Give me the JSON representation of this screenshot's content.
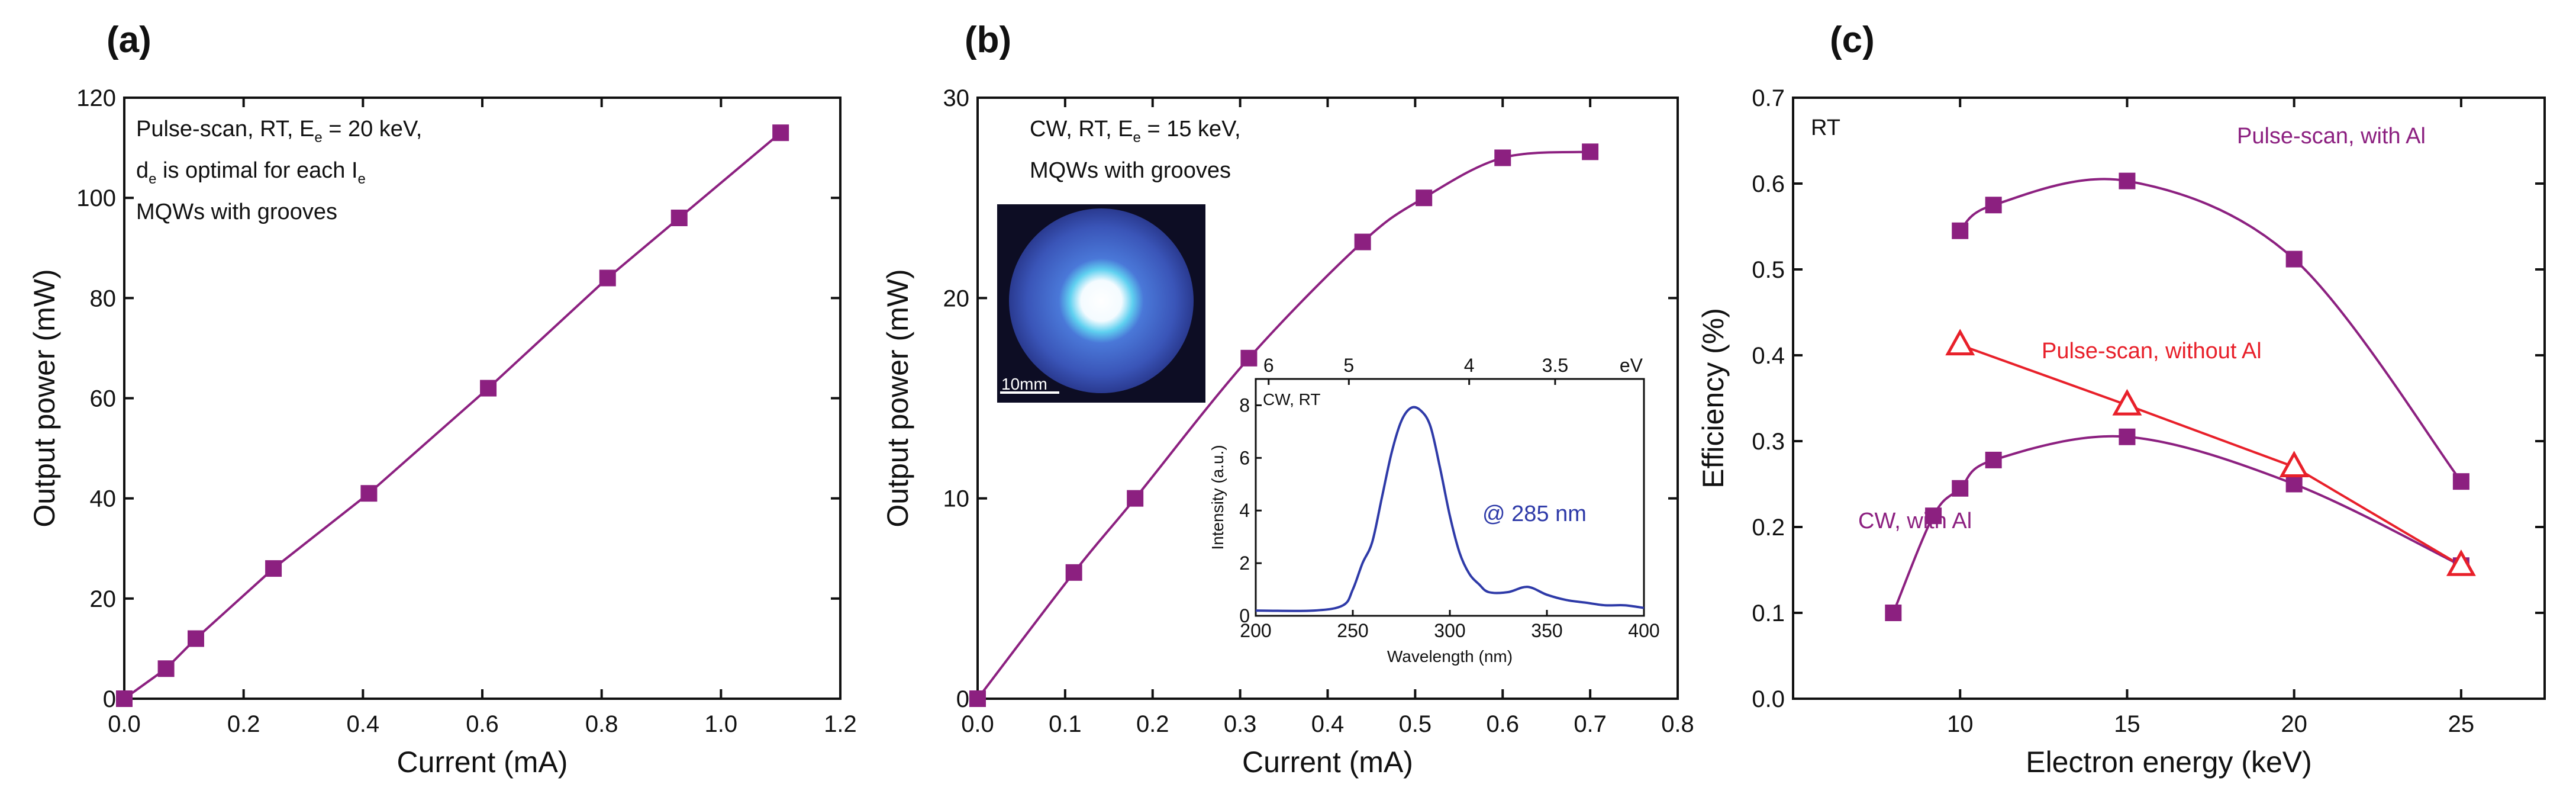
{
  "colors": {
    "purple": "#8c2080",
    "red": "#e8202a",
    "blue": "#2e3aa8",
    "axis": "#111111"
  },
  "chart_data": [
    {
      "id": "a",
      "panel_label": "(a)",
      "type": "line",
      "xlabel": "Current (mA)",
      "ylabel": "Output power (mW)",
      "xlim": [
        0,
        1.2
      ],
      "ylim": [
        0,
        120
      ],
      "xticks": [
        0,
        0.2,
        0.4,
        0.6,
        0.8,
        1.0,
        1.2
      ],
      "xtick_labels": [
        "0.0",
        "0.2",
        "0.4",
        "0.6",
        "0.8",
        "1.0",
        "1.2"
      ],
      "yticks": [
        0,
        20,
        40,
        60,
        80,
        100,
        120
      ],
      "ytick_labels": [
        "0",
        "20",
        "40",
        "60",
        "80",
        "100",
        "120"
      ],
      "annotation": {
        "line1": "Pulse-scan, RT, E",
        "line1_sub": "e",
        "line1_end": " = 20 keV,",
        "line2": "d",
        "line2_sub": "e",
        "line2_mid": " is optimal for each I",
        "line2_sub2": "e",
        "line3": "MQWs with grooves"
      },
      "series": [
        {
          "name": "Pulse-scan",
          "color": "#8c2080",
          "marker": "square",
          "x": [
            0.0,
            0.07,
            0.12,
            0.25,
            0.41,
            0.61,
            0.81,
            0.93,
            1.1
          ],
          "y": [
            0,
            6,
            12,
            26,
            41,
            62,
            84,
            96,
            113
          ]
        }
      ]
    },
    {
      "id": "b",
      "panel_label": "(b)",
      "type": "line",
      "xlabel": "Current (mA)",
      "ylabel": "Output power (mW)",
      "xlim": [
        0,
        0.8
      ],
      "ylim": [
        0,
        30
      ],
      "xticks": [
        0,
        0.1,
        0.2,
        0.3,
        0.4,
        0.5,
        0.6,
        0.7,
        0.8
      ],
      "xtick_labels": [
        "0.0",
        "0.1",
        "0.2",
        "0.3",
        "0.4",
        "0.5",
        "0.6",
        "0.7",
        "0.8"
      ],
      "yticks": [
        0,
        10,
        20,
        30
      ],
      "ytick_labels": [
        "0",
        "10",
        "20",
        "30"
      ],
      "annotation": {
        "line1": "CW, RT, E",
        "line1_sub": "e",
        "line1_end": " = 15 keV,",
        "line2": "MQWs with grooves"
      },
      "series": [
        {
          "name": "CW",
          "color": "#8c2080",
          "marker": "square",
          "x": [
            0.0,
            0.11,
            0.18,
            0.31,
            0.44,
            0.51,
            0.6,
            0.7
          ],
          "y": [
            0,
            6.3,
            10,
            17,
            22.8,
            25,
            27,
            27.3
          ]
        }
      ],
      "photo_inset": {
        "scale_label": "10mm"
      },
      "spectrum_inset": {
        "type": "line",
        "label": "CW, RT",
        "peak_label": "@ 285 nm",
        "xlabel": "Wavelength (nm)",
        "ylabel": "Intensity (a.u.)",
        "top_axis_unit": "eV",
        "xlim": [
          200,
          400
        ],
        "ylim": [
          0,
          9
        ],
        "xticks": [
          200,
          250,
          300,
          350,
          400
        ],
        "xtick_labels": [
          "200",
          "250",
          "300",
          "350",
          "400"
        ],
        "yticks": [
          0,
          2,
          4,
          6,
          8
        ],
        "ytick_labels": [
          "0",
          "2",
          "4",
          "6",
          "8"
        ],
        "top_ticks_ev": [
          6,
          5,
          4,
          3.5
        ],
        "top_tick_labels": [
          "6",
          "5",
          "4",
          "3.5"
        ],
        "curve": {
          "x": [
            200,
            230,
            245,
            250,
            255,
            260,
            265,
            270,
            275,
            280,
            285,
            290,
            295,
            300,
            305,
            310,
            315,
            320,
            330,
            340,
            350,
            360,
            370,
            380,
            390,
            400
          ],
          "y": [
            0.2,
            0.2,
            0.4,
            1.0,
            2.0,
            2.8,
            4.5,
            6.2,
            7.4,
            7.9,
            7.8,
            7.2,
            5.6,
            3.8,
            2.4,
            1.6,
            1.2,
            0.9,
            0.9,
            1.1,
            0.8,
            0.6,
            0.5,
            0.4,
            0.4,
            0.3
          ]
        }
      }
    },
    {
      "id": "c",
      "panel_label": "(c)",
      "type": "line",
      "xlabel": "Electron energy (keV)",
      "ylabel": "Efficiency (%)",
      "xlim": [
        5,
        27.5
      ],
      "ylim": [
        0,
        0.7
      ],
      "xticks": [
        10,
        15,
        20,
        25
      ],
      "xtick_labels": [
        "10",
        "15",
        "20",
        "25"
      ],
      "yticks": [
        0,
        0.1,
        0.2,
        0.3,
        0.4,
        0.5,
        0.6,
        0.7
      ],
      "ytick_labels": [
        "0.0",
        "0.1",
        "0.2",
        "0.3",
        "0.4",
        "0.5",
        "0.6",
        "0.7"
      ],
      "corner_label": "RT",
      "series": [
        {
          "name": "Pulse-scan, with Al",
          "color": "#8c2080",
          "marker": "square",
          "x": [
            10,
            11,
            15,
            20,
            25
          ],
          "y": [
            0.545,
            0.575,
            0.603,
            0.512,
            0.253
          ]
        },
        {
          "name": "Pulse-scan, without Al",
          "color": "#e8202a",
          "marker": "triangle-open",
          "x": [
            10,
            15,
            20,
            25
          ],
          "y": [
            0.412,
            0.342,
            0.27,
            0.155
          ]
        },
        {
          "name": "CW, with Al",
          "color": "#8c2080",
          "marker": "square",
          "x": [
            8,
            9.2,
            10,
            11,
            15,
            20,
            25
          ],
          "y": [
            0.1,
            0.213,
            0.245,
            0.278,
            0.305,
            0.25,
            0.155
          ]
        }
      ]
    }
  ]
}
